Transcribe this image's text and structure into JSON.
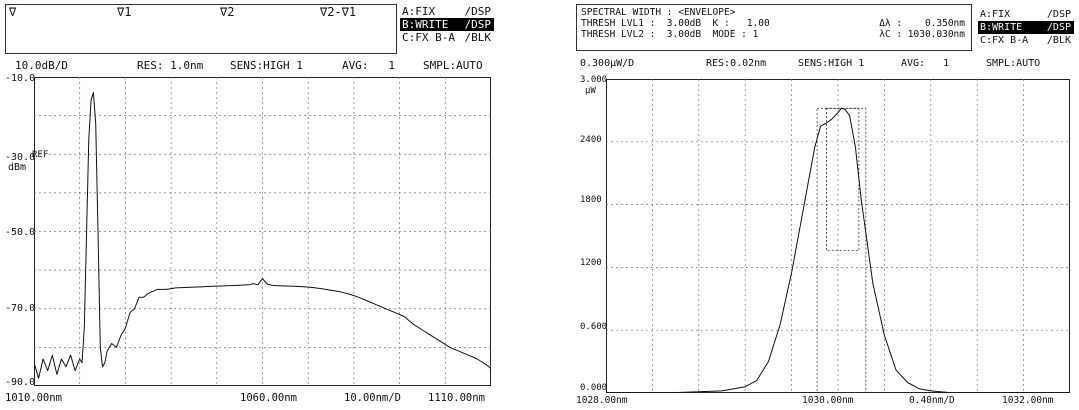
{
  "left": {
    "markers": [
      "∇",
      "∇1",
      "∇2",
      "∇2-∇1"
    ],
    "modes": [
      {
        "name": "A:FIX",
        "state": "/DSP",
        "active": false
      },
      {
        "name": "B:WRITE",
        "state": "/DSP",
        "active": true
      },
      {
        "name": "C:FX B-A",
        "state": "/BLK",
        "active": false
      }
    ],
    "status": {
      "scale": "10.0dB/D",
      "res": "RES: 1.0nm",
      "sens": "SENS:HIGH 1",
      "avg": "AVG:   1",
      "smpl": "SMPL:AUTO"
    },
    "y_labels": [
      "-10.0",
      "-30.0",
      "-50.0",
      "-70.0",
      "-90.0"
    ],
    "ref_label": "REF",
    "unit_label": "dBm",
    "x_labels": {
      "start": "1010.00nm",
      "center": "1060.00nm",
      "span": "10.00nm/D",
      "stop": "1110.00nm"
    }
  },
  "right": {
    "header": {
      "line1": "SPECTRAL WIDTH : <ENVELOPE>",
      "line2_a": "THRESH LVL1 :  3.00dB  K :   1.00",
      "line2_b": "Δλ :    0.350nm",
      "line3_a": "THRESH LVL2 :  3.00dB  MODE : 1",
      "line3_b": "λC : 1030.030nm"
    },
    "modes": [
      {
        "name": "A:FIX",
        "state": "/DSP",
        "active": false
      },
      {
        "name": "B:WRITE",
        "state": "/DSP",
        "active": true
      },
      {
        "name": "C:FX B-A",
        "state": "/BLK",
        "active": false
      }
    ],
    "status": {
      "scale": "0.300μW/D",
      "res": "RES:0.02nm",
      "sens": "SENS:HIGH 1",
      "avg": "AVG:   1",
      "smpl": "SMPL:AUTO"
    },
    "y_labels": [
      "3.000",
      "2400",
      "1800",
      "1200",
      "0.600",
      "0.000"
    ],
    "unit_label": "μW",
    "x_labels": {
      "start": "1028.00nm",
      "center": "1030.00nm",
      "span": "0.40nm/D",
      "stop": "1032.00nm"
    }
  },
  "chart_data": [
    {
      "type": "line",
      "xlim": [
        1010,
        1110
      ],
      "ylim": [
        -90,
        -10
      ],
      "grid": true,
      "y_ticks": [
        -10,
        -30,
        -50,
        -70,
        -90
      ],
      "series": [
        {
          "color": "#111111",
          "x": [
            1010,
            1011,
            1012,
            1013,
            1014,
            1015,
            1016,
            1017,
            1018,
            1019,
            1020,
            1020.5,
            1021,
            1021.5,
            1022,
            1022.5,
            1023,
            1023.5,
            1024,
            1024.5,
            1025,
            1025.5,
            1026,
            1027,
            1028,
            1029,
            1030,
            1031,
            1032,
            1033,
            1034,
            1035,
            1037,
            1039,
            1041,
            1043,
            1045,
            1047,
            1049,
            1051,
            1053,
            1055,
            1057,
            1058,
            1059,
            1060,
            1061,
            1062,
            1063,
            1065,
            1067,
            1069,
            1071,
            1073,
            1075,
            1077,
            1079,
            1081,
            1083,
            1085,
            1087,
            1089,
            1091,
            1093,
            1095,
            1097,
            1099,
            1101,
            1103,
            1105,
            1107,
            1109,
            1110
          ],
          "y": [
            -84,
            -88,
            -83,
            -86,
            -82,
            -87,
            -83,
            -85,
            -82,
            -86,
            -83,
            -84,
            -75,
            -50,
            -26,
            -16,
            -14,
            -22,
            -50,
            -80,
            -85,
            -84,
            -81,
            -79,
            -80,
            -77,
            -75,
            -71,
            -70,
            -67,
            -67,
            -66,
            -65,
            -65,
            -64.6,
            -64.5,
            -64.4,
            -64.3,
            -64.2,
            -64.1,
            -64.0,
            -63.9,
            -63.8,
            -63.5,
            -63.8,
            -62.2,
            -63.6,
            -63.9,
            -64.0,
            -64.1,
            -64.2,
            -64.3,
            -64.5,
            -64.8,
            -65.2,
            -65.6,
            -66.2,
            -67,
            -68,
            -69,
            -70,
            -71,
            -72,
            -74,
            -75.5,
            -77,
            -78.5,
            -80,
            -81,
            -82,
            -83,
            -84.5,
            -85.5
          ]
        }
      ]
    },
    {
      "type": "line",
      "xlim": [
        1028,
        1032
      ],
      "ylim": [
        0,
        3.0
      ],
      "grid": true,
      "y_ticks": [
        0,
        0.6,
        1.2,
        1.8,
        2.4,
        3.0
      ],
      "series": [
        {
          "color": "#111111",
          "x": [
            1028.0,
            1028.5,
            1029.0,
            1029.2,
            1029.3,
            1029.4,
            1029.5,
            1029.6,
            1029.7,
            1029.75,
            1029.8,
            1029.85,
            1029.9,
            1029.95,
            1030.0,
            1030.03,
            1030.06,
            1030.1,
            1030.15,
            1030.2,
            1030.25,
            1030.3,
            1030.4,
            1030.5,
            1030.6,
            1030.7,
            1030.8,
            1031.0,
            1031.5,
            1032.0
          ],
          "y": [
            0.0,
            0.0,
            0.02,
            0.06,
            0.12,
            0.3,
            0.65,
            1.15,
            1.75,
            2.05,
            2.35,
            2.55,
            2.58,
            2.62,
            2.68,
            2.72,
            2.71,
            2.65,
            2.35,
            1.85,
            1.45,
            1.05,
            0.55,
            0.22,
            0.1,
            0.04,
            0.02,
            0.0,
            0.0,
            0.0
          ]
        }
      ],
      "threshold_boxes": [
        {
          "x": [
            1029.82,
            1030.24
          ],
          "y": [
            0,
            2.72
          ],
          "style": "dotted"
        },
        {
          "x": [
            1029.9,
            1030.18
          ],
          "y": [
            1.36,
            2.72
          ],
          "style": "dotted"
        }
      ]
    }
  ]
}
